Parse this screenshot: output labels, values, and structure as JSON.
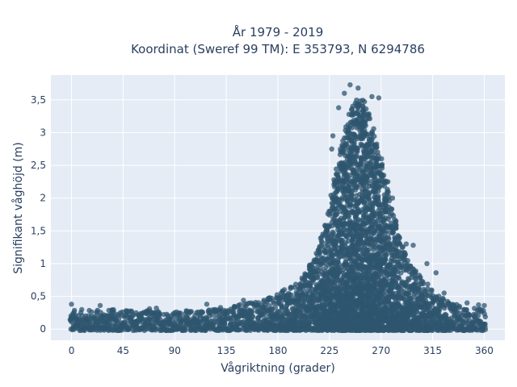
{
  "chart_data": {
    "type": "scatter",
    "title_line1": "År 1979 - 2019",
    "title_line2": "Koordinat (Sweref 99 TM): E 353793, N 6294786",
    "xlabel": "Vågriktning (grader)",
    "ylabel": "Signifikant våghöjd (m)",
    "xlim": [
      -18,
      378
    ],
    "ylim": [
      -0.17,
      3.88
    ],
    "x_ticks": [
      {
        "value": 0,
        "label": "0"
      },
      {
        "value": 45,
        "label": "45"
      },
      {
        "value": 90,
        "label": "90"
      },
      {
        "value": 135,
        "label": "135"
      },
      {
        "value": 180,
        "label": "180"
      },
      {
        "value": 225,
        "label": "225"
      },
      {
        "value": 270,
        "label": "270"
      },
      {
        "value": 315,
        "label": "315"
      },
      {
        "value": 360,
        "label": "360"
      }
    ],
    "y_ticks": [
      {
        "value": 0,
        "label": "0"
      },
      {
        "value": 0.5,
        "label": "0,5"
      },
      {
        "value": 1,
        "label": "1"
      },
      {
        "value": 1.5,
        "label": "1,5"
      },
      {
        "value": 2,
        "label": "2"
      },
      {
        "value": 2.5,
        "label": "2,5"
      },
      {
        "value": 3,
        "label": "3"
      },
      {
        "value": 3.5,
        "label": "3,5"
      }
    ],
    "grid": true,
    "colors": {
      "marker": "#2f556f",
      "plot_bg": "#e5ecf6",
      "grid": "#ffffff",
      "text": "#2a3f5f"
    },
    "envelope_upper": [
      {
        "x": 0,
        "y": 0.3
      },
      {
        "x": 45,
        "y": 0.3
      },
      {
        "x": 90,
        "y": 0.27
      },
      {
        "x": 135,
        "y": 0.33
      },
      {
        "x": 160,
        "y": 0.42
      },
      {
        "x": 180,
        "y": 0.55
      },
      {
        "x": 200,
        "y": 0.75
      },
      {
        "x": 215,
        "y": 1.2
      },
      {
        "x": 225,
        "y": 1.9
      },
      {
        "x": 235,
        "y": 2.8
      },
      {
        "x": 245,
        "y": 3.5
      },
      {
        "x": 255,
        "y": 3.55
      },
      {
        "x": 262,
        "y": 3.2
      },
      {
        "x": 270,
        "y": 2.6
      },
      {
        "x": 280,
        "y": 1.8
      },
      {
        "x": 290,
        "y": 1.2
      },
      {
        "x": 300,
        "y": 0.9
      },
      {
        "x": 315,
        "y": 0.6
      },
      {
        "x": 330,
        "y": 0.4
      },
      {
        "x": 345,
        "y": 0.33
      },
      {
        "x": 360,
        "y": 0.3
      }
    ],
    "outliers": [
      {
        "x": 243,
        "y": 3.73
      },
      {
        "x": 250,
        "y": 3.68
      },
      {
        "x": 238,
        "y": 3.6
      },
      {
        "x": 262,
        "y": 3.55
      },
      {
        "x": 268,
        "y": 3.53
      },
      {
        "x": 233,
        "y": 3.38
      },
      {
        "x": 228,
        "y": 2.95
      },
      {
        "x": 227,
        "y": 2.75
      },
      {
        "x": 276,
        "y": 2.25
      },
      {
        "x": 280,
        "y": 2.0
      },
      {
        "x": 283,
        "y": 1.65
      },
      {
        "x": 292,
        "y": 1.3
      },
      {
        "x": 298,
        "y": 1.28
      },
      {
        "x": 310,
        "y": 1.0
      },
      {
        "x": 318,
        "y": 0.86
      },
      {
        "x": 325,
        "y": 0.55
      },
      {
        "x": 0,
        "y": 0.38
      },
      {
        "x": 25,
        "y": 0.36
      },
      {
        "x": 68,
        "y": 0.31
      },
      {
        "x": 74,
        "y": 0.32
      },
      {
        "x": 118,
        "y": 0.38
      },
      {
        "x": 130,
        "y": 0.33
      },
      {
        "x": 150,
        "y": 0.44
      },
      {
        "x": 355,
        "y": 0.37
      },
      {
        "x": 345,
        "y": 0.4
      },
      {
        "x": 360,
        "y": 0.36
      }
    ]
  }
}
